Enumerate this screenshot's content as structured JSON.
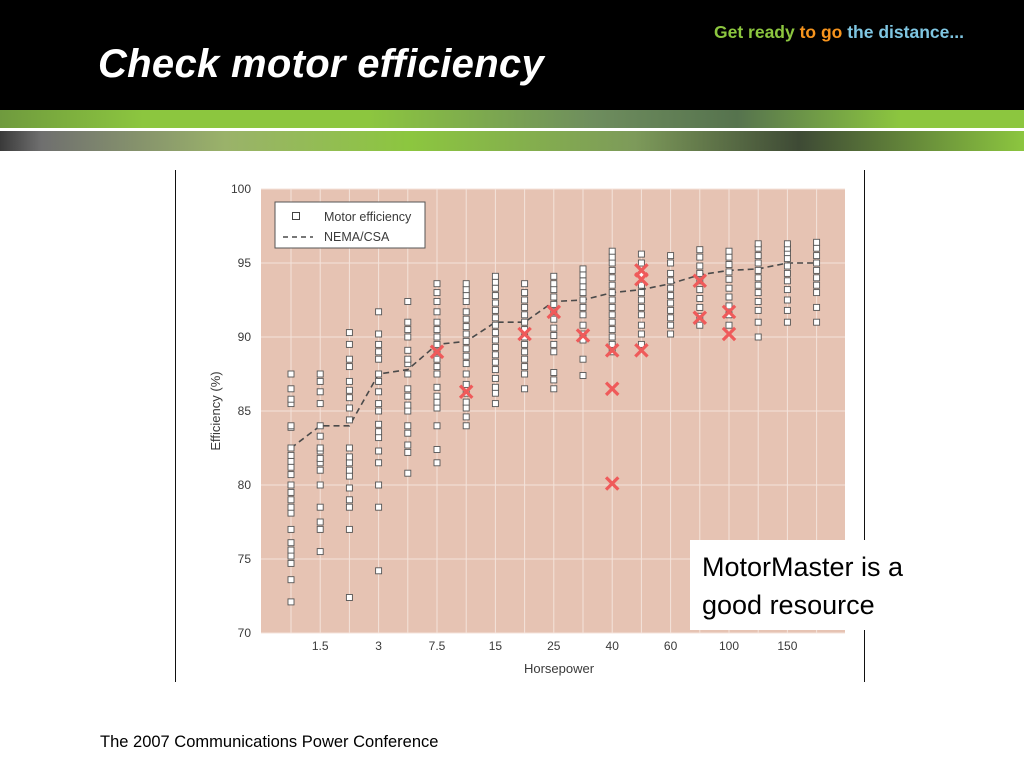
{
  "slide": {
    "title": "Check motor efficiency",
    "tagline": {
      "part1": "Get ready ",
      "part2": "to go ",
      "part3": "the distance..."
    },
    "callout": {
      "line1": "MotorMaster is a",
      "line2": "good resource"
    },
    "footer": "The 2007 Communications Power Conference"
  },
  "colors": {
    "header": "#000000",
    "accent_green": "#8cc63f",
    "tagline_orange": "#f7941d",
    "tagline_blue": "#7fc6e2",
    "plot_background": "#e6c3b3",
    "marker_highlight": "#ef5a5a",
    "nema_line": "#4a4a4a"
  },
  "chart_data": {
    "type": "scatter",
    "xlabel": "Horsepower",
    "ylabel": "Efficiency (%)",
    "ylim": [
      70,
      100
    ],
    "yticks": [
      70,
      75,
      80,
      85,
      90,
      95,
      100
    ],
    "categories": [
      "",
      "1.5",
      "",
      "3",
      "",
      "7.5",
      "",
      "15",
      "",
      "25",
      "",
      "40",
      "",
      "60",
      "",
      "100",
      "",
      "150",
      ""
    ],
    "grid": true,
    "legend": {
      "position": "top-left",
      "entries": [
        "Motor efficiency",
        "NEMA/CSA"
      ]
    },
    "series": [
      {
        "name": "Motor efficiency",
        "marker": "open-square",
        "points": [
          [
            0,
            72.1
          ],
          [
            0,
            73.6
          ],
          [
            0,
            74.7
          ],
          [
            0,
            75.2
          ],
          [
            0,
            75.6
          ],
          [
            0,
            76.1
          ],
          [
            0,
            77.0
          ],
          [
            0,
            78.1
          ],
          [
            0,
            78.5
          ],
          [
            0,
            79.0
          ],
          [
            0,
            79.5
          ],
          [
            0,
            80.0
          ],
          [
            0,
            80.7
          ],
          [
            0,
            81.2
          ],
          [
            0,
            81.6
          ],
          [
            0,
            82.0
          ],
          [
            0,
            82.5
          ],
          [
            0,
            83.9
          ],
          [
            0,
            84.0
          ],
          [
            0,
            85.5
          ],
          [
            0,
            85.8
          ],
          [
            0,
            86.5
          ],
          [
            0,
            87.5
          ],
          [
            1,
            75.5
          ],
          [
            1,
            77.0
          ],
          [
            1,
            77.5
          ],
          [
            1,
            78.5
          ],
          [
            1,
            80.0
          ],
          [
            1,
            81.0
          ],
          [
            1,
            81.5
          ],
          [
            1,
            81.8
          ],
          [
            1,
            82.3
          ],
          [
            1,
            82.5
          ],
          [
            1,
            83.3
          ],
          [
            1,
            84.0
          ],
          [
            1,
            85.5
          ],
          [
            1,
            86.3
          ],
          [
            1,
            87.0
          ],
          [
            1,
            87.5
          ],
          [
            2,
            72.4
          ],
          [
            2,
            77.0
          ],
          [
            2,
            78.5
          ],
          [
            2,
            79.0
          ],
          [
            2,
            79.8
          ],
          [
            2,
            80.6
          ],
          [
            2,
            81.0
          ],
          [
            2,
            81.5
          ],
          [
            2,
            81.9
          ],
          [
            2,
            82.5
          ],
          [
            2,
            84.4
          ],
          [
            2,
            85.2
          ],
          [
            2,
            85.9
          ],
          [
            2,
            86.4
          ],
          [
            2,
            87.0
          ],
          [
            2,
            88.0
          ],
          [
            2,
            88.5
          ],
          [
            2,
            89.5
          ],
          [
            2,
            90.3
          ],
          [
            3,
            74.2
          ],
          [
            3,
            78.5
          ],
          [
            3,
            80.0
          ],
          [
            3,
            81.5
          ],
          [
            3,
            82.3
          ],
          [
            3,
            83.2
          ],
          [
            3,
            83.6
          ],
          [
            3,
            84.1
          ],
          [
            3,
            85.0
          ],
          [
            3,
            85.5
          ],
          [
            3,
            86.3
          ],
          [
            3,
            87.0
          ],
          [
            3,
            87.5
          ],
          [
            3,
            88.5
          ],
          [
            3,
            89.0
          ],
          [
            3,
            89.5
          ],
          [
            3,
            90.2
          ],
          [
            3,
            91.7
          ],
          [
            4,
            80.8
          ],
          [
            4,
            82.2
          ],
          [
            4,
            82.7
          ],
          [
            4,
            83.5
          ],
          [
            4,
            84.0
          ],
          [
            4,
            85.0
          ],
          [
            4,
            85.4
          ],
          [
            4,
            86.0
          ],
          [
            4,
            86.5
          ],
          [
            4,
            87.5
          ],
          [
            4,
            88.2
          ],
          [
            4,
            88.5
          ],
          [
            4,
            89.1
          ],
          [
            4,
            90.0
          ],
          [
            4,
            90.5
          ],
          [
            4,
            91.0
          ],
          [
            4,
            92.4
          ],
          [
            5,
            81.5
          ],
          [
            5,
            82.4
          ],
          [
            5,
            84.0
          ],
          [
            5,
            85.2
          ],
          [
            5,
            85.6
          ],
          [
            5,
            86.0
          ],
          [
            5,
            86.6
          ],
          [
            5,
            87.5
          ],
          [
            5,
            88.0
          ],
          [
            5,
            88.5
          ],
          [
            5,
            89.0
          ],
          [
            5,
            89.5
          ],
          [
            5,
            90.0
          ],
          [
            5,
            90.5
          ],
          [
            5,
            91.0
          ],
          [
            5,
            91.7
          ],
          [
            5,
            92.4
          ],
          [
            5,
            93.0
          ],
          [
            5,
            93.6
          ],
          [
            6,
            84.0
          ],
          [
            6,
            84.6
          ],
          [
            6,
            85.2
          ],
          [
            6,
            85.6
          ],
          [
            6,
            86.2
          ],
          [
            6,
            86.8
          ],
          [
            6,
            87.5
          ],
          [
            6,
            88.2
          ],
          [
            6,
            88.7
          ],
          [
            6,
            89.2
          ],
          [
            6,
            89.7
          ],
          [
            6,
            90.2
          ],
          [
            6,
            90.7
          ],
          [
            6,
            91.2
          ],
          [
            6,
            91.7
          ],
          [
            6,
            92.4
          ],
          [
            6,
            92.8
          ],
          [
            6,
            93.2
          ],
          [
            6,
            93.6
          ],
          [
            7,
            85.5
          ],
          [
            7,
            86.2
          ],
          [
            7,
            86.6
          ],
          [
            7,
            87.2
          ],
          [
            7,
            87.8
          ],
          [
            7,
            88.3
          ],
          [
            7,
            88.8
          ],
          [
            7,
            89.3
          ],
          [
            7,
            89.8
          ],
          [
            7,
            90.3
          ],
          [
            7,
            90.8
          ],
          [
            7,
            91.3
          ],
          [
            7,
            91.8
          ],
          [
            7,
            92.3
          ],
          [
            7,
            92.8
          ],
          [
            7,
            93.3
          ],
          [
            7,
            93.7
          ],
          [
            7,
            94.1
          ],
          [
            8,
            86.5
          ],
          [
            8,
            87.5
          ],
          [
            8,
            88.0
          ],
          [
            8,
            88.5
          ],
          [
            8,
            89.0
          ],
          [
            8,
            89.5
          ],
          [
            8,
            90.0
          ],
          [
            8,
            90.5
          ],
          [
            8,
            91.0
          ],
          [
            8,
            91.5
          ],
          [
            8,
            92.0
          ],
          [
            8,
            92.5
          ],
          [
            8,
            93.0
          ],
          [
            8,
            93.6
          ],
          [
            9,
            86.5
          ],
          [
            9,
            87.1
          ],
          [
            9,
            87.6
          ],
          [
            9,
            89.0
          ],
          [
            9,
            89.5
          ],
          [
            9,
            90.1
          ],
          [
            9,
            90.6
          ],
          [
            9,
            91.2
          ],
          [
            9,
            91.7
          ],
          [
            9,
            92.2
          ],
          [
            9,
            92.7
          ],
          [
            9,
            93.2
          ],
          [
            9,
            93.6
          ],
          [
            9,
            94.1
          ],
          [
            10,
            87.4
          ],
          [
            10,
            88.5
          ],
          [
            10,
            89.8
          ],
          [
            10,
            90.2
          ],
          [
            10,
            90.8
          ],
          [
            10,
            91.5
          ],
          [
            10,
            92.0
          ],
          [
            10,
            92.5
          ],
          [
            10,
            93.0
          ],
          [
            10,
            93.4
          ],
          [
            10,
            93.8
          ],
          [
            10,
            94.2
          ],
          [
            10,
            94.6
          ],
          [
            11,
            89.0
          ],
          [
            11,
            89.5
          ],
          [
            11,
            90.0
          ],
          [
            11,
            90.5
          ],
          [
            11,
            91.0
          ],
          [
            11,
            91.5
          ],
          [
            11,
            92.0
          ],
          [
            11,
            92.5
          ],
          [
            11,
            93.0
          ],
          [
            11,
            93.5
          ],
          [
            11,
            94.0
          ],
          [
            11,
            94.5
          ],
          [
            11,
            95.0
          ],
          [
            11,
            95.4
          ],
          [
            11,
            95.8
          ],
          [
            12,
            89.5
          ],
          [
            12,
            90.2
          ],
          [
            12,
            90.8
          ],
          [
            12,
            91.5
          ],
          [
            12,
            92.0
          ],
          [
            12,
            92.5
          ],
          [
            12,
            93.0
          ],
          [
            12,
            93.5
          ],
          [
            12,
            94.2
          ],
          [
            12,
            95.0
          ],
          [
            12,
            95.6
          ],
          [
            13,
            90.2
          ],
          [
            13,
            90.8
          ],
          [
            13,
            91.3
          ],
          [
            13,
            91.8
          ],
          [
            13,
            92.3
          ],
          [
            13,
            92.8
          ],
          [
            13,
            93.3
          ],
          [
            13,
            93.8
          ],
          [
            13,
            94.3
          ],
          [
            13,
            95.0
          ],
          [
            13,
            95.5
          ],
          [
            14,
            90.8
          ],
          [
            14,
            91.4
          ],
          [
            14,
            92.0
          ],
          [
            14,
            92.6
          ],
          [
            14,
            93.2
          ],
          [
            14,
            93.8
          ],
          [
            14,
            94.3
          ],
          [
            14,
            94.8
          ],
          [
            14,
            95.4
          ],
          [
            14,
            95.9
          ],
          [
            15,
            90.8
          ],
          [
            15,
            91.5
          ],
          [
            15,
            92.1
          ],
          [
            15,
            92.7
          ],
          [
            15,
            93.3
          ],
          [
            15,
            93.9
          ],
          [
            15,
            94.4
          ],
          [
            15,
            94.9
          ],
          [
            15,
            95.4
          ],
          [
            15,
            95.8
          ],
          [
            16,
            90.0
          ],
          [
            16,
            91.0
          ],
          [
            16,
            91.8
          ],
          [
            16,
            92.4
          ],
          [
            16,
            93.0
          ],
          [
            16,
            93.5
          ],
          [
            16,
            94.0
          ],
          [
            16,
            94.5
          ],
          [
            16,
            95.0
          ],
          [
            16,
            95.5
          ],
          [
            16,
            96.0
          ],
          [
            16,
            96.3
          ],
          [
            17,
            91.0
          ],
          [
            17,
            91.8
          ],
          [
            17,
            92.5
          ],
          [
            17,
            93.2
          ],
          [
            17,
            93.8
          ],
          [
            17,
            94.3
          ],
          [
            17,
            94.8
          ],
          [
            17,
            95.3
          ],
          [
            17,
            95.7
          ],
          [
            17,
            96.0
          ],
          [
            17,
            96.3
          ],
          [
            18,
            91.0
          ],
          [
            18,
            92.0
          ],
          [
            18,
            93.0
          ],
          [
            18,
            93.5
          ],
          [
            18,
            94.0
          ],
          [
            18,
            94.5
          ],
          [
            18,
            95.0
          ],
          [
            18,
            95.5
          ],
          [
            18,
            96.0
          ],
          [
            18,
            96.4
          ]
        ]
      },
      {
        "name": "NEMA/CSA",
        "line": "dashed",
        "points": [
          [
            0,
            82.5
          ],
          [
            1,
            84.0
          ],
          [
            2,
            84.0
          ],
          [
            3,
            87.5
          ],
          [
            4,
            87.8
          ],
          [
            5,
            89.5
          ],
          [
            6,
            89.7
          ],
          [
            7,
            91.0
          ],
          [
            8,
            91.0
          ],
          [
            9,
            92.4
          ],
          [
            10,
            92.5
          ],
          [
            11,
            93.0
          ],
          [
            12,
            93.2
          ],
          [
            13,
            93.6
          ],
          [
            14,
            94.2
          ],
          [
            15,
            94.5
          ],
          [
            16,
            94.6
          ],
          [
            17,
            95.0
          ],
          [
            18,
            95.0
          ]
        ]
      },
      {
        "marker": "x",
        "points": [
          [
            5,
            89.0
          ],
          [
            6,
            86.3
          ],
          [
            8,
            90.2
          ],
          [
            9,
            91.7
          ],
          [
            10,
            90.1
          ],
          [
            11,
            89.1
          ],
          [
            11,
            86.5
          ],
          [
            11,
            80.1
          ],
          [
            12,
            94.5
          ],
          [
            12,
            93.9
          ],
          [
            12,
            89.1
          ],
          [
            14,
            93.8
          ],
          [
            14,
            91.3
          ],
          [
            15,
            91.7
          ],
          [
            15,
            90.2
          ]
        ]
      }
    ]
  }
}
